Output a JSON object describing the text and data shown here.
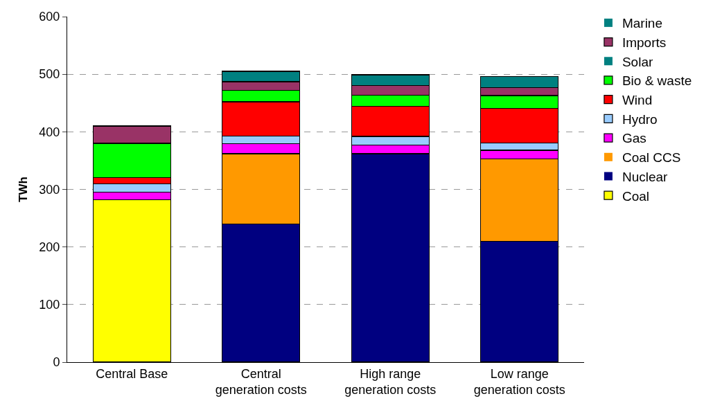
{
  "chart_data": {
    "type": "bar",
    "stacked": true,
    "ylabel": "TWh",
    "categories": [
      "Central Base",
      "Central\ngeneration costs",
      "High range\ngeneration costs",
      "Low range\ngeneration costs"
    ],
    "series": [
      {
        "name": "Coal",
        "color": "#ffff00",
        "values": [
          282,
          0,
          0,
          0
        ]
      },
      {
        "name": "Nuclear",
        "color": "#000080",
        "values": [
          0,
          240,
          362,
          210
        ]
      },
      {
        "name": "Coal CCS",
        "color": "#ff9900",
        "values": [
          0,
          122,
          0,
          143
        ]
      },
      {
        "name": "Gas",
        "color": "#ff00ff",
        "values": [
          13,
          17,
          15,
          15
        ]
      },
      {
        "name": "Hydro",
        "color": "#99ccff",
        "values": [
          15,
          14,
          15,
          13
        ]
      },
      {
        "name": "Wind",
        "color": "#ff0000",
        "values": [
          10,
          59,
          52,
          60
        ]
      },
      {
        "name": "Bio & waste",
        "color": "#00ff00",
        "values": [
          60,
          20,
          20,
          22
        ]
      },
      {
        "name": "Solar",
        "color": "#008080",
        "values": [
          0,
          0,
          0,
          0
        ]
      },
      {
        "name": "Imports",
        "color": "#993366",
        "values": [
          30,
          15,
          16,
          14
        ]
      },
      {
        "name": "Marine",
        "color": "#008080",
        "values": [
          0,
          18,
          19,
          19
        ]
      }
    ],
    "ylim": [
      0,
      600
    ],
    "yticks": [
      0,
      100,
      200,
      300,
      400,
      500,
      600
    ],
    "grid": "y",
    "legend": "right"
  }
}
